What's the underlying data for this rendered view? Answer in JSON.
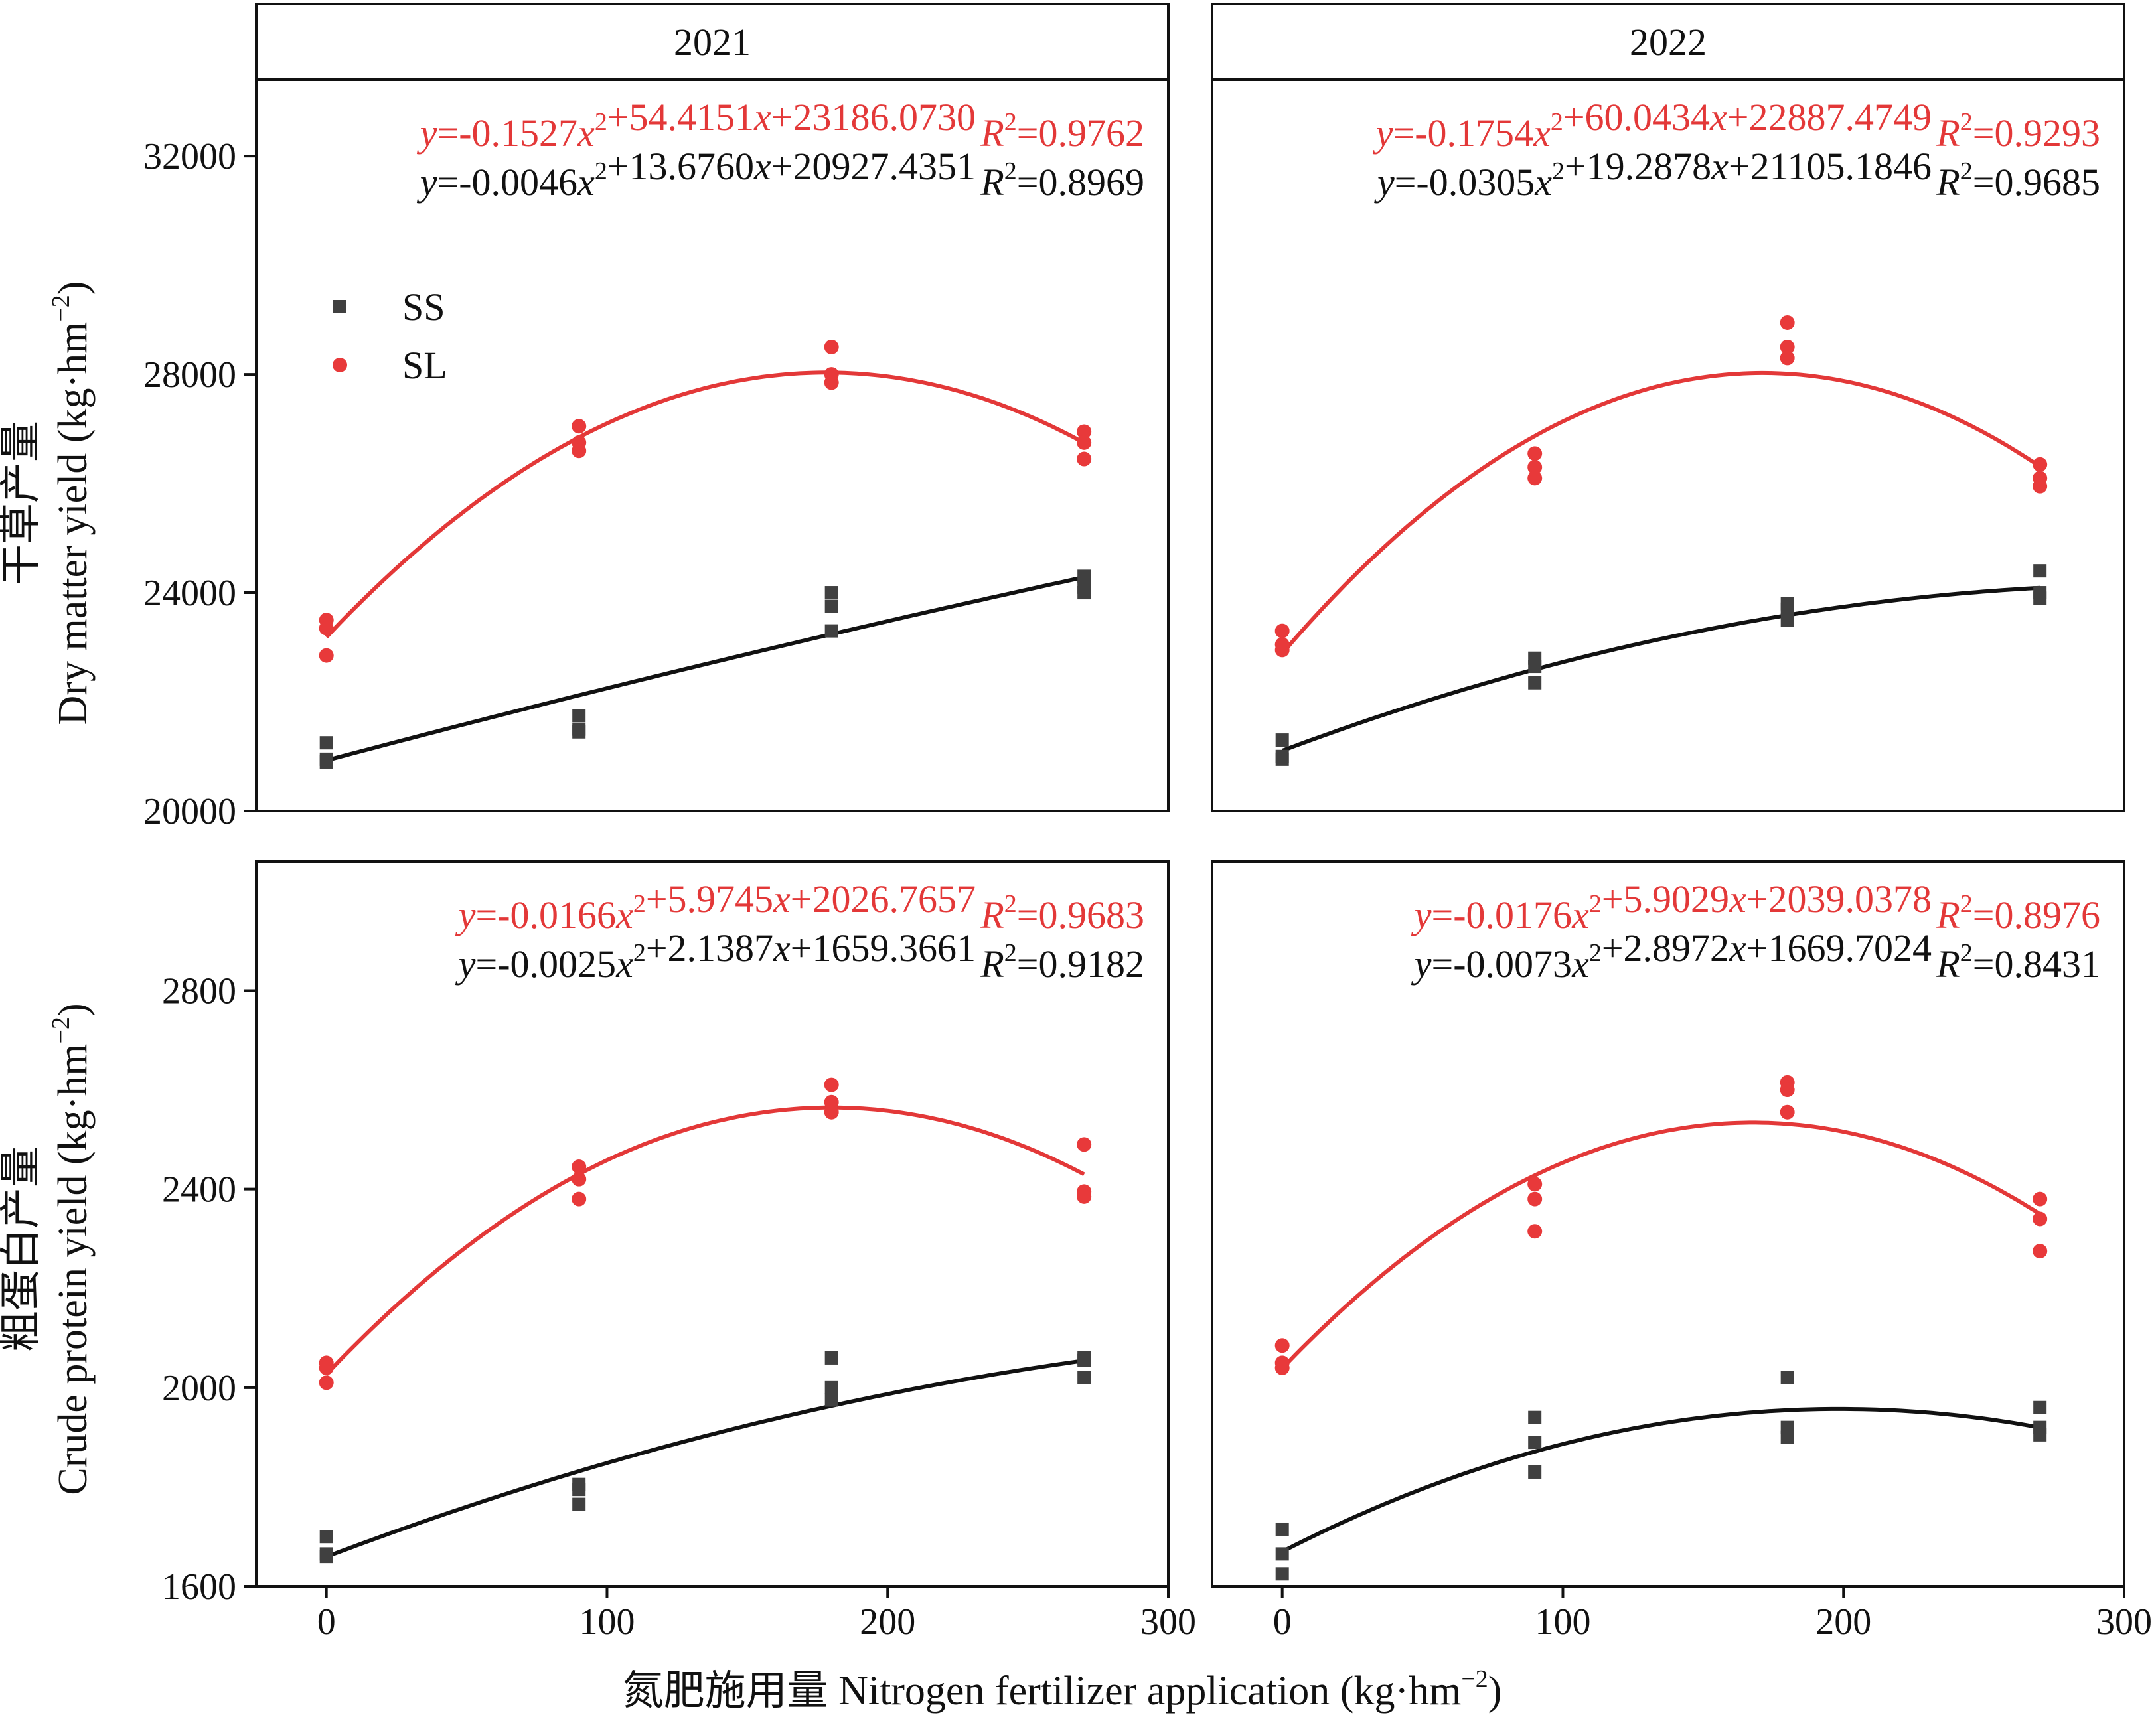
{
  "figure": {
    "xlabel": "氮肥施用量 Nitrogen fertilizer application (kg·hm",
    "xlabel_sup": "−2",
    "xlabel_end": ")",
    "ylabel_top_cn": "干草产量",
    "ylabel_top_en": "Dry matter yield (kg·hm",
    "ylabel_bottom_cn": "粗蛋白产量",
    "ylabel_bottom_en": "Crude protein yield (kg·hm",
    "ylabel_sup": "−2",
    "ylabel_end": ")",
    "legend": [
      {
        "label": "SS",
        "color": "#404040",
        "marker": "square"
      },
      {
        "label": "SL",
        "color": "#e8393a",
        "marker": "circle"
      }
    ],
    "colors": {
      "SS": "#404040",
      "SL": "#e8393a",
      "SS_line": "#111111",
      "SL_line": "#e33838"
    }
  },
  "chart_data": [
    {
      "type": "scatter",
      "panel": "top-left",
      "title": "2021",
      "ylim": [
        20000,
        33400
      ],
      "yticks": [
        20000,
        24000,
        28000,
        32000
      ],
      "xlim": [
        -25,
        300
      ],
      "xticks": [
        0,
        100,
        200,
        300
      ],
      "show_yticks": true,
      "show_xticks": false,
      "series": [
        {
          "name": "SL",
          "fit": [
            -0.1527,
            54.4151,
            23186.073
          ],
          "equation": "y=-0.1527x2+54.4151x+23186.0730",
          "r2": "R2=0.9762",
          "points": [
            [
              0,
              23500
            ],
            [
              0,
              23350
            ],
            [
              0,
              22850
            ],
            [
              90,
              27050
            ],
            [
              90,
              26750
            ],
            [
              90,
              26600
            ],
            [
              180,
              28500
            ],
            [
              180,
              28000
            ],
            [
              180,
              27850
            ],
            [
              270,
              26950
            ],
            [
              270,
              26750
            ],
            [
              270,
              26450
            ]
          ]
        },
        {
          "name": "SS",
          "fit": [
            -0.0046,
            13.676,
            20927.4351
          ],
          "equation": "y=-0.0046x2+13.6760x+20927.4351",
          "r2": "R2=0.8969",
          "points": [
            [
              0,
              21250
            ],
            [
              0,
              20950
            ],
            [
              0,
              20900
            ],
            [
              90,
              21750
            ],
            [
              90,
              21500
            ],
            [
              90,
              21450
            ],
            [
              180,
              24000
            ],
            [
              180,
              23750
            ],
            [
              180,
              23300
            ],
            [
              270,
              24300
            ],
            [
              270,
              24100
            ],
            [
              270,
              24000
            ]
          ]
        }
      ]
    },
    {
      "type": "scatter",
      "panel": "top-right",
      "title": "2022",
      "ylim": [
        20000,
        33400
      ],
      "yticks": [
        20000,
        24000,
        28000,
        32000
      ],
      "xlim": [
        -25,
        300
      ],
      "xticks": [
        0,
        100,
        200,
        300
      ],
      "show_yticks": false,
      "show_xticks": false,
      "series": [
        {
          "name": "SL",
          "fit": [
            -0.1754,
            60.0434,
            22887.4749
          ],
          "equation": "y=-0.1754x2+60.0434x+22887.4749",
          "r2": "R2=0.9293",
          "points": [
            [
              0,
              23300
            ],
            [
              0,
              23050
            ],
            [
              0,
              22950
            ],
            [
              90,
              26550
            ],
            [
              90,
              26300
            ],
            [
              90,
              26100
            ],
            [
              180,
              28950
            ],
            [
              180,
              28500
            ],
            [
              180,
              28300
            ],
            [
              270,
              26350
            ],
            [
              270,
              26100
            ],
            [
              270,
              25950
            ]
          ]
        },
        {
          "name": "SS",
          "fit": [
            -0.0305,
            19.2878,
            21105.1846
          ],
          "equation": "y=-0.0305x2+19.2878x+21105.1846",
          "r2": "R2=0.9685",
          "points": [
            [
              0,
              21300
            ],
            [
              0,
              21000
            ],
            [
              0,
              20950
            ],
            [
              90,
              22800
            ],
            [
              90,
              22650
            ],
            [
              90,
              22350
            ],
            [
              180,
              23800
            ],
            [
              180,
              23700
            ],
            [
              180,
              23500
            ],
            [
              270,
              24400
            ],
            [
              270,
              24000
            ],
            [
              270,
              23900
            ]
          ]
        }
      ]
    },
    {
      "type": "scatter",
      "panel": "bottom-left",
      "title": "",
      "ylim": [
        1600,
        3060
      ],
      "yticks": [
        1600,
        2000,
        2400,
        2800
      ],
      "xlim": [
        -25,
        300
      ],
      "xticks": [
        0,
        100,
        200,
        300
      ],
      "show_yticks": true,
      "show_xticks": true,
      "series": [
        {
          "name": "SL",
          "fit": [
            -0.0166,
            5.9745,
            2026.7657
          ],
          "equation": "y=-0.0166x2+5.9745x+2026.7657",
          "r2": "R2=0.9683",
          "points": [
            [
              0,
              2050
            ],
            [
              0,
              2040
            ],
            [
              0,
              2010
            ],
            [
              90,
              2445
            ],
            [
              90,
              2420
            ],
            [
              90,
              2380
            ],
            [
              180,
              2610
            ],
            [
              180,
              2575
            ],
            [
              180,
              2555
            ],
            [
              270,
              2490
            ],
            [
              270,
              2395
            ],
            [
              270,
              2385
            ]
          ]
        },
        {
          "name": "SS",
          "fit": [
            -0.0025,
            2.1387,
            1659.3661
          ],
          "equation": "y=-0.0025x2+2.1387x+1659.3661",
          "r2": "R2=0.9182",
          "points": [
            [
              0,
              1700
            ],
            [
              0,
              1665
            ],
            [
              0,
              1660
            ],
            [
              90,
              1805
            ],
            [
              90,
              1795
            ],
            [
              90,
              1765
            ],
            [
              180,
              2060
            ],
            [
              180,
              2000
            ],
            [
              180,
              1975
            ],
            [
              270,
              2060
            ],
            [
              270,
              2055
            ],
            [
              270,
              2020
            ]
          ]
        }
      ]
    },
    {
      "type": "scatter",
      "panel": "bottom-right",
      "title": "",
      "ylim": [
        1600,
        3060
      ],
      "yticks": [
        1600,
        2000,
        2400,
        2800
      ],
      "xlim": [
        -25,
        300
      ],
      "xticks": [
        0,
        100,
        200,
        300
      ],
      "show_yticks": false,
      "show_xticks": true,
      "series": [
        {
          "name": "SL",
          "fit": [
            -0.0176,
            5.9029,
            2039.0378
          ],
          "equation": "y=-0.0176x2+5.9029x+2039.0378",
          "r2": "R2=0.8976",
          "points": [
            [
              0,
              2085
            ],
            [
              0,
              2050
            ],
            [
              0,
              2040
            ],
            [
              90,
              2410
            ],
            [
              90,
              2380
            ],
            [
              90,
              2315
            ],
            [
              180,
              2615
            ],
            [
              180,
              2600
            ],
            [
              180,
              2555
            ],
            [
              270,
              2380
            ],
            [
              270,
              2340
            ],
            [
              270,
              2275
            ]
          ]
        },
        {
          "name": "SS",
          "fit": [
            -0.0073,
            2.8972,
            1669.7024
          ],
          "equation": "y=-0.0073x2+2.8972x+1669.7024",
          "r2": "R2=0.8431",
          "points": [
            [
              0,
              1715
            ],
            [
              0,
              1665
            ],
            [
              0,
              1625
            ],
            [
              90,
              1940
            ],
            [
              90,
              1890
            ],
            [
              90,
              1830
            ],
            [
              180,
              2020
            ],
            [
              180,
              1920
            ],
            [
              180,
              1900
            ],
            [
              270,
              1960
            ],
            [
              270,
              1920
            ],
            [
              270,
              1905
            ]
          ]
        }
      ]
    }
  ]
}
